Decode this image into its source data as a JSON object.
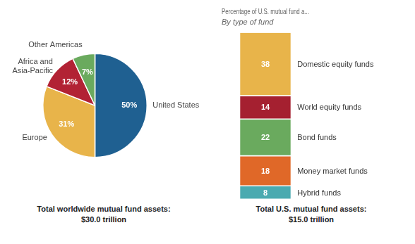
{
  "chart_data": [
    {
      "type": "pie",
      "categories": [
        "United States",
        "Europe",
        "Africa and\nAsia-Pacific",
        "Other Americas"
      ],
      "values": [
        50,
        31,
        12,
        7
      ],
      "value_labels": [
        "50%",
        "31%",
        "12%",
        "7%"
      ],
      "colors": [
        "#1f6091",
        "#e8b44a",
        "#b22234",
        "#6aaa5e"
      ],
      "data_labels": true,
      "annotations": [
        "Total worldwide mutual fund assets:",
        "$30.0 trillion"
      ]
    },
    {
      "type": "bar",
      "title": "Percentage of U.S. mutual fund a...",
      "subtitle": "By type of fund",
      "categories": [
        null
      ],
      "series": [
        {
          "name": "Domestic equity funds",
          "color": "#e8b44a",
          "values": [
            38
          ]
        },
        {
          "name": "World equity funds",
          "color": "#a52030",
          "values": [
            14
          ]
        },
        {
          "name": "Bond funds",
          "color": "#6aaa5e",
          "values": [
            22
          ]
        },
        {
          "name": "Money market funds",
          "color": "#e06828",
          "values": [
            18
          ]
        },
        {
          "name": "Hybrid funds",
          "color": "#4aaab0",
          "values": [
            8
          ]
        }
      ],
      "stacked": true,
      "ylim": [
        0,
        100
      ],
      "grid": false,
      "tick_labels": false,
      "data_labels": true,
      "annotations": [
        "Total U.S. mutual fund assets:",
        "$15.0 trillion"
      ]
    }
  ]
}
